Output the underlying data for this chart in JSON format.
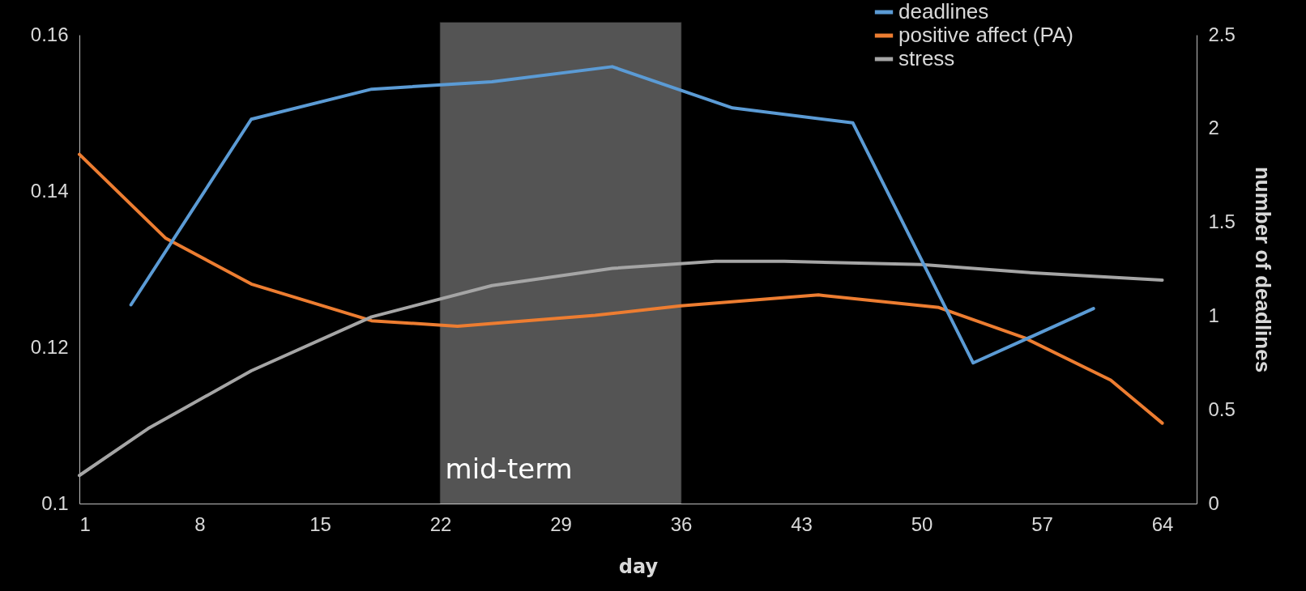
{
  "chart_data": {
    "type": "line",
    "xlabel": "day",
    "y2label": "number of deadlines",
    "xlim": [
      1,
      66
    ],
    "xticks": [
      1,
      8,
      15,
      22,
      29,
      36,
      43,
      50,
      57,
      64
    ],
    "ylim": [
      0.1,
      0.16
    ],
    "yticks": [
      0.1,
      0.12,
      0.14,
      0.16
    ],
    "y2lim": [
      0,
      2.5
    ],
    "y2ticks": [
      0,
      0.5,
      1,
      1.5,
      2,
      2.5
    ],
    "series": [
      {
        "name": "deadlines",
        "color": "#5b9bd5",
        "axis": "y2",
        "x": [
          4,
          11,
          18,
          25,
          32,
          39,
          46,
          53,
          60
        ],
        "values": [
          1.06,
          2.05,
          2.21,
          2.25,
          2.33,
          2.11,
          2.03,
          0.75,
          1.04
        ]
      },
      {
        "name": "positive affect (PA)",
        "color": "#ed7d31",
        "x": [
          1,
          6,
          11,
          18,
          23,
          31,
          36,
          44,
          51,
          56,
          61,
          64
        ],
        "values": [
          0.1447,
          0.134,
          0.1281,
          0.1234,
          0.1227,
          0.1241,
          0.1253,
          0.1267,
          0.1251,
          0.1212,
          0.1158,
          0.1103
        ]
      },
      {
        "name": "stress",
        "color": "#a5a5a5",
        "x": [
          1,
          5,
          11,
          18,
          25,
          32,
          38,
          42,
          50,
          56,
          64
        ],
        "values": [
          0.1036,
          0.1096,
          0.117,
          0.1239,
          0.1279,
          0.1301,
          0.131,
          0.131,
          0.1306,
          0.1296,
          0.1286
        ]
      }
    ],
    "bands": [
      {
        "axis": "x",
        "from": 22,
        "to": 36,
        "label": "mid-term",
        "color": "#ffffff"
      }
    ],
    "legend": "top right",
    "grid": false,
    "marker": "none",
    "line_style": "solid"
  }
}
